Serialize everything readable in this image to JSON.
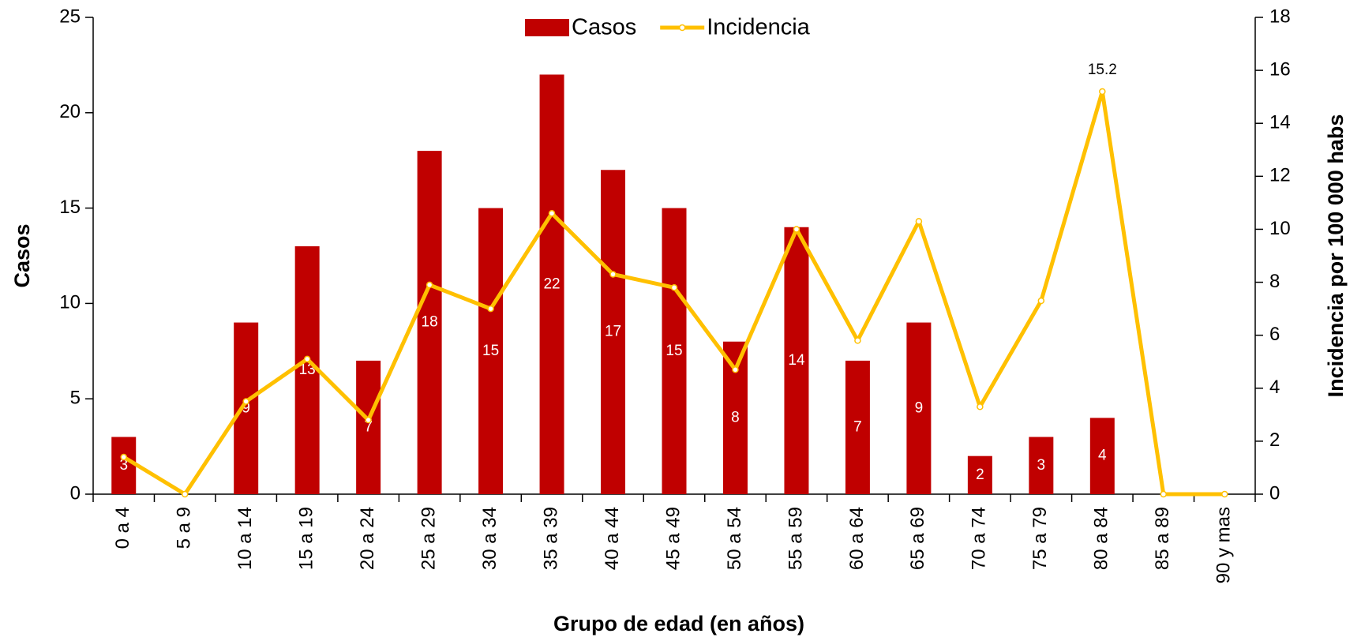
{
  "chart_data": {
    "type": "bar_line",
    "x_label": "Grupo de edad (en años)",
    "y_label": "Casos",
    "y2_label": "Incidencia por 100 000 habs",
    "categories": [
      "0 a 4",
      "5 a 9",
      "10 a 14",
      "15 a 19",
      "20 a 24",
      "25 a 29",
      "30 a 34",
      "35 a 39",
      "40 a 44",
      "45 a 49",
      "50 a 54",
      "55 a 59",
      "60 a 64",
      "65 a 69",
      "70 a 74",
      "75 a 79",
      "80 a 84",
      "85 a 89",
      "90 y mas"
    ],
    "series": [
      {
        "name": "Casos",
        "type": "bar",
        "color": "#c00000",
        "values": [
          3,
          0,
          9,
          13,
          7,
          18,
          15,
          22,
          17,
          15,
          8,
          14,
          7,
          9,
          2,
          3,
          4,
          0,
          0
        ]
      },
      {
        "name": "Incidencia",
        "type": "line",
        "axis": "y2",
        "color": "#ffc000",
        "values": [
          1.4,
          0,
          3.5,
          5.1,
          2.8,
          7.9,
          7.0,
          10.6,
          8.3,
          7.8,
          4.7,
          10.0,
          5.8,
          10.3,
          3.3,
          7.3,
          15.2,
          0,
          0
        ]
      }
    ],
    "ylim": [
      0,
      25
    ],
    "yticks": [
      0,
      5,
      10,
      15,
      20,
      25
    ],
    "y2lim": [
      0,
      18
    ],
    "y2ticks": [
      0,
      2,
      4,
      6,
      8,
      10,
      12,
      14,
      16,
      18
    ],
    "legend": "top"
  }
}
